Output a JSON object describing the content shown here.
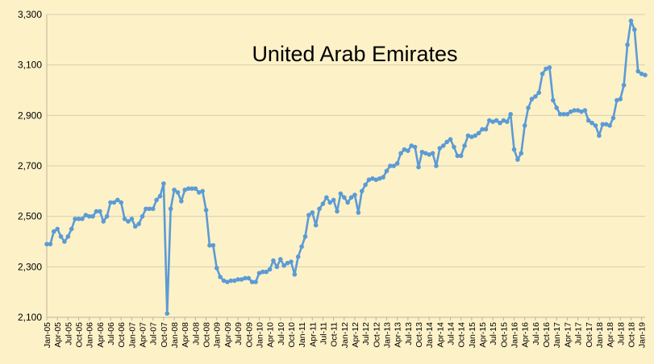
{
  "chart_data": {
    "type": "line",
    "title": "United Arab Emirates",
    "xlabel": "",
    "ylabel": "",
    "ylim": [
      2100,
      3300
    ],
    "yticks": [
      2100,
      2300,
      2500,
      2700,
      2900,
      3100,
      3300
    ],
    "ytick_labels": [
      "2,100",
      "2,300",
      "2,500",
      "2,700",
      "2,900",
      "3,100",
      "3,300"
    ],
    "grid": true,
    "legend": "none",
    "line_color": "#5b9bd5",
    "x_start": "Jan-05",
    "xtick_labels": [
      "Jan-05",
      "Apr-05",
      "Jul-05",
      "Oct-05",
      "Jan-06",
      "Apr-06",
      "Jul-06",
      "Oct-06",
      "Jan-07",
      "Apr-07",
      "Jul-07",
      "Oct-07",
      "Jan-08",
      "Apr-08",
      "Jul-08",
      "Oct-08",
      "Jan-09",
      "Apr-09",
      "Jul-09",
      "Oct-09",
      "Jan-10",
      "Apr-10",
      "Jul-10",
      "Oct-10",
      "Jan-11",
      "Apr-11",
      "Jul-11",
      "Oct-11",
      "Jan-12",
      "Apr-12",
      "Jul-12",
      "Oct-12",
      "Jan-13",
      "Apr-13",
      "Jul-13",
      "Oct-13",
      "Jan-14",
      "Apr-14",
      "Jul-14",
      "Oct-14",
      "Jan-15",
      "Apr-15",
      "Jul-15",
      "Oct-15",
      "Jan-16",
      "Apr-16",
      "Jul-16",
      "Oct-16",
      "Jan-17",
      "Apr-17",
      "Jul-17",
      "Oct-17",
      "Jan-18",
      "Apr-18",
      "Jul-18",
      "Oct-18",
      "Jan-19"
    ],
    "series": [
      {
        "values": [
          2390,
          2390,
          2440,
          2450,
          2420,
          2400,
          2420,
          2450,
          2490,
          2490,
          2490,
          2505,
          2500,
          2500,
          2520,
          2520,
          2480,
          2500,
          2555,
          2555,
          2565,
          2555,
          2490,
          2480,
          2490,
          2460,
          2470,
          2500,
          2530,
          2530,
          2530,
          2565,
          2580,
          2630,
          2115,
          2530,
          2605,
          2595,
          2560,
          2605,
          2610,
          2610,
          2610,
          2595,
          2600,
          2525,
          2385,
          2385,
          2295,
          2260,
          2245,
          2240,
          2245,
          2245,
          2250,
          2250,
          2255,
          2255,
          2240,
          2240,
          2275,
          2280,
          2280,
          2290,
          2325,
          2300,
          2330,
          2305,
          2315,
          2320,
          2270,
          2340,
          2380,
          2420,
          2505,
          2515,
          2465,
          2530,
          2550,
          2575,
          2555,
          2565,
          2520,
          2590,
          2575,
          2555,
          2575,
          2585,
          2515,
          2600,
          2625,
          2645,
          2650,
          2645,
          2650,
          2655,
          2680,
          2700,
          2700,
          2710,
          2750,
          2765,
          2760,
          2780,
          2775,
          2695,
          2755,
          2750,
          2745,
          2750,
          2700,
          2770,
          2780,
          2795,
          2805,
          2775,
          2740,
          2740,
          2780,
          2820,
          2815,
          2820,
          2830,
          2845,
          2845,
          2880,
          2875,
          2880,
          2870,
          2880,
          2875,
          2905,
          2765,
          2725,
          2750,
          2860,
          2930,
          2965,
          2975,
          2990,
          3065,
          3085,
          3090,
          2960,
          2930,
          2905,
          2905,
          2905,
          2915,
          2920,
          2920,
          2915,
          2920,
          2880,
          2870,
          2860,
          2820,
          2865,
          2865,
          2860,
          2890,
          2960,
          2965,
          3020,
          3180,
          3275,
          3240,
          3075,
          3065,
          3060
        ]
      }
    ]
  }
}
